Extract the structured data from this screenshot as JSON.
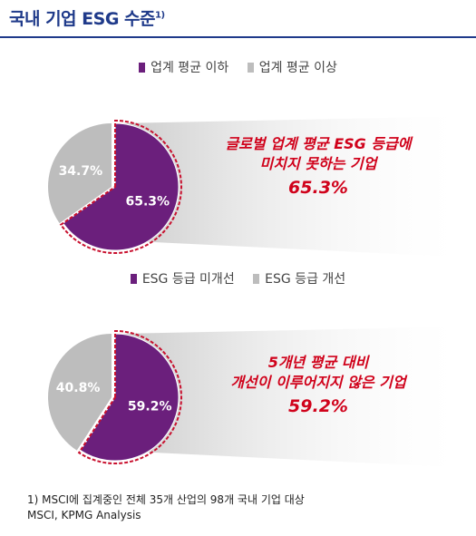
{
  "title": "국내 기업 ESG 수준",
  "title_sup": "1)",
  "colors": {
    "title": "#1f3a8a",
    "purple": "#6b1f7c",
    "gray": "#bdbdbd",
    "dash": "#c8102e",
    "callout": "#d0021b"
  },
  "chart_data": [
    {
      "type": "pie",
      "legend": [
        "업계 평균 이하",
        "업계 평균 이상"
      ],
      "legend_position": "top",
      "slices": [
        {
          "name": "업계 평균 이하",
          "value": 65.3,
          "label": "65.3%"
        },
        {
          "name": "업계 평균 이상",
          "value": 34.7,
          "label": "34.7%"
        }
      ],
      "callout": {
        "line1": "글로벌 업계 평균 ESG 등급에",
        "line2": "미치지 못하는 기업",
        "value": "65.3%"
      }
    },
    {
      "type": "pie",
      "legend": [
        "ESG 등급 미개선",
        "ESG 등급 개선"
      ],
      "legend_position": "top",
      "slices": [
        {
          "name": "ESG 등급 미개선",
          "value": 59.2,
          "label": "59.2%"
        },
        {
          "name": "ESG 등급 개선",
          "value": 40.8,
          "label": "40.8%"
        }
      ],
      "callout": {
        "line1": "5개년 평균 대비",
        "line2": "개선이 이루어지지 않은 기업",
        "value": "59.2%"
      }
    }
  ],
  "footnote": {
    "line1": "1) MSCI에 집계중인 전체 35개 산업의 98개 국내 기업 대상",
    "line2": "MSCI, KPMG Analysis"
  }
}
